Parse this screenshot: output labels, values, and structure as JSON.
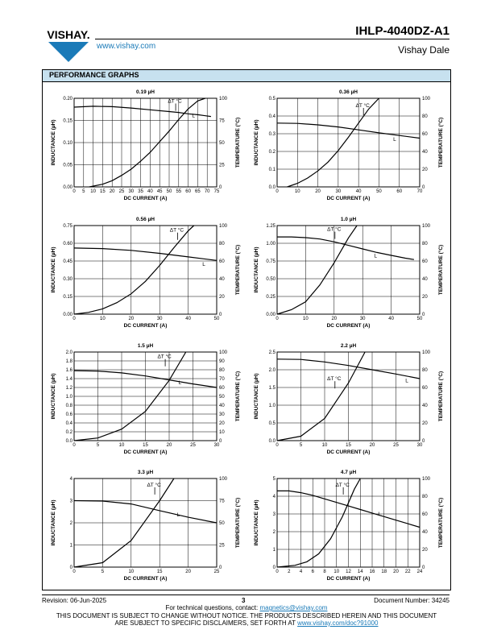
{
  "header": {
    "brand": "VISHAY.",
    "website": "www.vishay.com",
    "part_number": "IHLP-4040DZ-A1",
    "company": "Vishay Dale"
  },
  "section_title": "PERFORMANCE GRAPHS",
  "footer": {
    "revision": "Revision: 06-Jun-2025",
    "page": "3",
    "document_number": "Document Number: 34245",
    "contact_prefix": "For technical questions, contact: ",
    "contact_email": "magnetics@vishay.com",
    "disclaimer_line1": "THIS DOCUMENT IS SUBJECT TO CHANGE WITHOUT NOTICE. THE PRODUCTS DESCRIBED HEREIN AND THIS DOCUMENT",
    "disclaimer_line2_prefix": "ARE SUBJECT TO SPECIFIC DISCLAIMERS, SET FORTH AT ",
    "disclaimer_link": "www.vishay.com/doc?91000"
  },
  "colors": {
    "link": "#1a7ab8",
    "title_bar": "#c7e1ef",
    "logo": "#1a7ab8"
  },
  "chart_data": [
    {
      "type": "line",
      "title": "0.19 µH",
      "xlabel": "DC CURRENT (A)",
      "ylabel": "INDUCTANCE (µH)",
      "y2label": "TEMPERATURE (°C)",
      "xlim": [
        0,
        75
      ],
      "xticks": [
        0,
        5,
        10,
        15,
        20,
        25,
        30,
        35,
        40,
        45,
        50,
        55,
        60,
        65,
        70,
        75
      ],
      "ylim": [
        0,
        0.2
      ],
      "yticks": [
        "0.00",
        "0.05",
        "0.10",
        "0.15",
        "0.20"
      ],
      "y2lim": [
        0,
        100
      ],
      "y2ticks": [
        0,
        25,
        50,
        75,
        100
      ],
      "series": [
        {
          "name": "L",
          "axis": "left",
          "x": [
            0,
            10,
            20,
            30,
            40,
            50,
            55,
            60,
            65,
            72
          ],
          "y": [
            0.18,
            0.182,
            0.181,
            0.178,
            0.174,
            0.17,
            0.168,
            0.165,
            0.163,
            0.159
          ]
        },
        {
          "name": "ΔT °C",
          "axis": "right",
          "x": [
            8,
            15,
            20,
            25,
            30,
            35,
            40,
            45,
            50,
            55,
            60,
            65,
            69
          ],
          "y": [
            0,
            3,
            7,
            13,
            20,
            29,
            39,
            51,
            63,
            76,
            88,
            97,
            100
          ]
        }
      ],
      "labels": {
        "L": {
          "x": 62,
          "y": 0.157
        },
        "T": {
          "x": 53,
          "y": 95
        }
      }
    },
    {
      "type": "line",
      "title": "0.36 µH",
      "xlabel": "DC CURRENT (A)",
      "ylabel": "INDUCTANCE (µH)",
      "y2label": "TEMPERATURE (°C)",
      "xlim": [
        0,
        70
      ],
      "xticks": [
        0,
        10,
        20,
        30,
        40,
        50,
        60,
        70
      ],
      "ylim": [
        0,
        0.5
      ],
      "yticks": [
        "0.0",
        "0.1",
        "0.2",
        "0.3",
        "0.4",
        "0.5"
      ],
      "y2lim": [
        0,
        100
      ],
      "y2ticks": [
        0,
        20,
        40,
        60,
        80,
        100
      ],
      "series": [
        {
          "name": "L",
          "axis": "left",
          "x": [
            0,
            10,
            20,
            30,
            40,
            50,
            60,
            70
          ],
          "y": [
            0.36,
            0.358,
            0.35,
            0.338,
            0.322,
            0.305,
            0.29,
            0.275
          ]
        },
        {
          "name": "ΔT °C",
          "axis": "right",
          "x": [
            5,
            10,
            15,
            20,
            25,
            30,
            35,
            40,
            45,
            50
          ],
          "y": [
            0,
            4,
            10,
            18,
            28,
            41,
            56,
            72,
            88,
            100
          ]
        }
      ],
      "labels": {
        "L": {
          "x": 57,
          "y": 0.26
        },
        "T": {
          "x": 42,
          "y": 90
        }
      }
    },
    {
      "type": "line",
      "title": "0.56 µH",
      "xlabel": "DC CURRENT (A)",
      "ylabel": "INDUCTANCE (µH)",
      "y2label": "TEMPERATURE (°C)",
      "xlim": [
        0,
        50
      ],
      "xticks": [
        0,
        10,
        20,
        30,
        40,
        50
      ],
      "ylim": [
        0,
        0.75
      ],
      "yticks": [
        "0.00",
        "0.15",
        "0.30",
        "0.45",
        "0.60",
        "0.75"
      ],
      "y2lim": [
        0,
        100
      ],
      "y2ticks": [
        0,
        20,
        40,
        60,
        80,
        100
      ],
      "series": [
        {
          "name": "L",
          "axis": "left",
          "x": [
            0,
            10,
            20,
            30,
            40,
            50
          ],
          "y": [
            0.56,
            0.555,
            0.54,
            0.515,
            0.485,
            0.455
          ]
        },
        {
          "name": "ΔT °C",
          "axis": "right",
          "x": [
            0,
            5,
            10,
            15,
            20,
            25,
            30,
            35,
            40,
            42
          ],
          "y": [
            0,
            2,
            6,
            13,
            23,
            37,
            55,
            75,
            94,
            100
          ]
        }
      ],
      "labels": {
        "L": {
          "x": 45,
          "y": 0.41
        },
        "T": {
          "x": 36,
          "y": 93
        }
      }
    },
    {
      "type": "line",
      "title": "1.0 µH",
      "xlabel": "DC CURRENT (A)",
      "ylabel": "INDUCTANCE (µH)",
      "y2label": "TEMPERATURE (°C)",
      "xlim": [
        0,
        50
      ],
      "xticks": [
        0,
        10,
        20,
        30,
        40,
        50
      ],
      "ylim": [
        0,
        1.25
      ],
      "yticks": [
        "0.00",
        "0.25",
        "0.50",
        "0.75",
        "1.00",
        "1.25"
      ],
      "y2lim": [
        0,
        100
      ],
      "y2ticks": [
        0,
        20,
        40,
        60,
        80,
        100
      ],
      "series": [
        {
          "name": "L",
          "axis": "left",
          "x": [
            0,
            5,
            10,
            15,
            20,
            25,
            30,
            35,
            40,
            45,
            48
          ],
          "y": [
            1.09,
            1.09,
            1.08,
            1.06,
            1.02,
            0.97,
            0.92,
            0.87,
            0.83,
            0.79,
            0.77
          ]
        },
        {
          "name": "ΔT °C",
          "axis": "right",
          "x": [
            0,
            5,
            10,
            15,
            20,
            25,
            28
          ],
          "y": [
            0,
            5,
            14,
            33,
            58,
            86,
            100
          ]
        }
      ],
      "labels": {
        "L": {
          "x": 34,
          "y": 0.8
        },
        "T": {
          "x": 20,
          "y": 94
        }
      }
    },
    {
      "type": "line",
      "title": "1.5 µH",
      "xlabel": "DC CURRENT (A)",
      "ylabel": "INDUCTANCE (µH)",
      "y2label": "TEMPERATURE (°C)",
      "xlim": [
        0,
        30
      ],
      "xticks": [
        0,
        5,
        10,
        15,
        20,
        25,
        30
      ],
      "ylim": [
        0,
        2.0
      ],
      "yticks": [
        "0.0",
        "0.2",
        "0.4",
        "0.6",
        "0.8",
        "1.0",
        "1.2",
        "1.4",
        "1.6",
        "1.8",
        "2.0"
      ],
      "y2lim": [
        0,
        100
      ],
      "y2ticks": [
        0,
        10,
        20,
        30,
        40,
        50,
        60,
        70,
        80,
        90,
        100
      ],
      "series": [
        {
          "name": "L",
          "axis": "left",
          "x": [
            0,
            5,
            10,
            15,
            20,
            25,
            30
          ],
          "y": [
            1.58,
            1.57,
            1.53,
            1.46,
            1.37,
            1.28,
            1.2
          ]
        },
        {
          "name": "ΔT °C",
          "axis": "right",
          "x": [
            0,
            5,
            10,
            15,
            20,
            23.5
          ],
          "y": [
            0,
            3,
            13,
            33,
            68,
            100
          ]
        }
      ],
      "labels": {
        "L": {
          "x": 22,
          "y": 1.27
        },
        "T": {
          "x": 19,
          "y": 93
        }
      }
    },
    {
      "type": "line",
      "title": "2.2 µH",
      "xlabel": "DC CURRENT (A)",
      "ylabel": "INDUCTANCE (µH)",
      "y2label": "TEMPERATURE (°C)",
      "xlim": [
        0,
        30
      ],
      "xticks": [
        0,
        5,
        10,
        15,
        20,
        25,
        30
      ],
      "ylim": [
        0,
        2.5
      ],
      "yticks": [
        "0.0",
        "0.5",
        "1.0",
        "1.5",
        "2.0",
        "2.5"
      ],
      "y2lim": [
        0,
        100
      ],
      "y2ticks": [
        0,
        20,
        40,
        60,
        80,
        100
      ],
      "series": [
        {
          "name": "L",
          "axis": "left",
          "x": [
            0,
            5,
            10,
            15,
            20,
            25,
            30
          ],
          "y": [
            2.3,
            2.29,
            2.22,
            2.12,
            2.0,
            1.88,
            1.75
          ]
        },
        {
          "name": "ΔT °C",
          "axis": "right",
          "x": [
            0,
            5,
            10,
            15,
            18.5
          ],
          "y": [
            0,
            5,
            25,
            65,
            100
          ]
        }
      ],
      "labels": {
        "L": {
          "x": 27,
          "y": 1.65
        },
        "T": {
          "x": 12,
          "y": 68
        }
      }
    },
    {
      "type": "line",
      "title": "3.3 µH",
      "xlabel": "DC CURRENT (A)",
      "ylabel": "INDUCTANCE (µH)",
      "y2label": "TEMPERATURE (°C)",
      "xlim": [
        0,
        25
      ],
      "xticks": [
        0,
        5,
        10,
        15,
        20,
        25
      ],
      "ylim": [
        0,
        4
      ],
      "yticks": [
        "0",
        "1",
        "2",
        "3",
        "4"
      ],
      "y2lim": [
        0,
        100
      ],
      "y2ticks": [
        0,
        25,
        50,
        75,
        100
      ],
      "series": [
        {
          "name": "L",
          "axis": "left",
          "x": [
            0,
            5,
            10,
            15,
            20,
            25
          ],
          "y": [
            3.0,
            2.98,
            2.85,
            2.55,
            2.25,
            2.0
          ]
        },
        {
          "name": "ΔT °C",
          "axis": "right",
          "x": [
            0,
            5,
            10,
            15,
            17.5
          ],
          "y": [
            0,
            5,
            30,
            75,
            100
          ]
        }
      ],
      "labels": {
        "L": {
          "x": 18,
          "y": 2.3
        },
        "T": {
          "x": 14,
          "y": 91
        }
      }
    },
    {
      "type": "line",
      "title": "4.7 µH",
      "xlabel": "DC CURRENT (A)",
      "ylabel": "INDUCTANCE (µH)",
      "y2label": "TEMPERATURE (°C)",
      "xlim": [
        0,
        24
      ],
      "xticks": [
        0,
        2,
        4,
        6,
        8,
        10,
        12,
        14,
        16,
        18,
        20,
        22,
        24
      ],
      "ylim": [
        0,
        5
      ],
      "yticks": [
        "0",
        "1",
        "2",
        "3",
        "4",
        "5"
      ],
      "y2lim": [
        0,
        100
      ],
      "y2ticks": [
        0,
        20,
        40,
        60,
        80,
        100
      ],
      "series": [
        {
          "name": "L",
          "axis": "left",
          "x": [
            0,
            2,
            4,
            6,
            8,
            10,
            12,
            14,
            16,
            18,
            20,
            22,
            24
          ],
          "y": [
            4.3,
            4.3,
            4.2,
            4.05,
            3.85,
            3.65,
            3.45,
            3.25,
            3.05,
            2.85,
            2.65,
            2.45,
            2.25
          ]
        },
        {
          "name": "ΔT °C",
          "axis": "right",
          "x": [
            0,
            3,
            5,
            7,
            9,
            11,
            13,
            14
          ],
          "y": [
            0,
            2,
            6,
            15,
            32,
            57,
            88,
            100
          ]
        }
      ],
      "labels": {
        "L": {
          "x": 17,
          "y": 2.9
        },
        "T": {
          "x": 11,
          "y": 91
        }
      }
    }
  ]
}
